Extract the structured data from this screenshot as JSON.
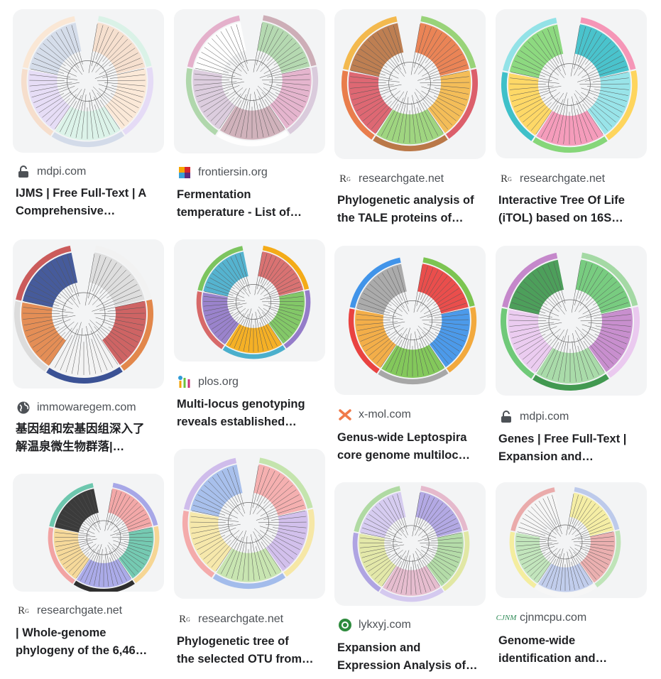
{
  "results": [
    {
      "source": "mdpi.com",
      "icon": "lock-icon",
      "title1": "IJMS | Free Full-Text | A",
      "title2": "Comprehensive…",
      "colors": [
        "#f6dcc8",
        "#fbe6d2",
        "#d7f2e6",
        "#e3d8f6",
        "#cfd8e8"
      ]
    },
    {
      "source": "frontiersin.org",
      "icon": "frontiers-logo",
      "title1": "Fermentation",
      "title2": "temperature - List of…",
      "colors": [
        "#a9d4a4",
        "#e2a9c7",
        "#c9a6b0",
        "#d7c6d9",
        "#ffffff"
      ]
    },
    {
      "source": "researchgate.net",
      "icon": "researchgate-logo",
      "title1": "Phylogenetic analysis of",
      "title2": "the TALE proteins of…",
      "colors": [
        "#e8703a",
        "#f3b33c",
        "#8fcf6b",
        "#d94f5c",
        "#b46a35"
      ]
    },
    {
      "source": "researchgate.net",
      "icon": "researchgate-logo",
      "title1": "Interactive Tree Of Life",
      "title2": "(iTOL) based on 16S…",
      "colors": [
        "#2bbac4",
        "#88e0e6",
        "#f58cb0",
        "#ffd24d",
        "#7ad36b"
      ]
    },
    {
      "source": "immowaregem.com",
      "icon": "globe-icon",
      "title1": "基因组和宏基因组深入了",
      "title2": "解温泉微生物群落|…",
      "colors": [
        "#d9d9d9",
        "#c74a4a",
        "#f2f2f2",
        "#e07b39",
        "#27408b"
      ]
    },
    {
      "source": "plos.org",
      "icon": "plos-logo",
      "title1": "Multi-locus genotyping",
      "title2": "reveals established…",
      "colors": [
        "#d45a5a",
        "#6fbf4f",
        "#f4a300",
        "#8a6fc4",
        "#38a7c8"
      ]
    },
    {
      "source": "x-mol.com",
      "icon": "xmol-logo",
      "title1": "Genus-wide Leptospira",
      "title2": "core genome multiloc…",
      "colors": [
        "#e8302e",
        "#2e8ae8",
        "#6fbf3f",
        "#f2a12a",
        "#9e9e9e"
      ]
    },
    {
      "source": "mdpi.com",
      "icon": "lock-icon",
      "title1": "Genes | Free Full-Text |",
      "title2": "Expansion and…",
      "colors": [
        "#62c46b",
        "#c07cc7",
        "#9bd69b",
        "#e9c4ee",
        "#2f8f3f"
      ]
    },
    {
      "source": "researchgate.net",
      "icon": "researchgate-logo",
      "title1": "| Whole-genome",
      "title2": "phylogeny of the 6,46…",
      "colors": [
        "#f29a9a",
        "#5ec2a6",
        "#9e9ee6",
        "#f6d38a",
        "#1a1a1a"
      ]
    },
    {
      "source": "researchgate.net",
      "icon": "researchgate-logo",
      "title1": "Phylogenetic tree of",
      "title2": "the selected OTU from…",
      "colors": [
        "#f4a3a3",
        "#cbb6ea",
        "#bfe2a5",
        "#f6e59d",
        "#9ab6ea"
      ]
    },
    {
      "source": "lykxyj.com",
      "icon": "lykxyj-logo",
      "title1": "Expansion and",
      "title2": "Expression Analysis of…",
      "colors": [
        "#a79be0",
        "#a8d79a",
        "#e3b3c8",
        "#dfe59b",
        "#d0c4ee"
      ]
    },
    {
      "source": "cjnmcpu.com",
      "icon": "cjnm-logo",
      "title1": "Genome-wide",
      "title2": "identification and…",
      "colors": [
        "#f4ec96",
        "#e9a3a3",
        "#b7c5ea",
        "#b9e2b1",
        "#f6f6f6"
      ]
    }
  ]
}
